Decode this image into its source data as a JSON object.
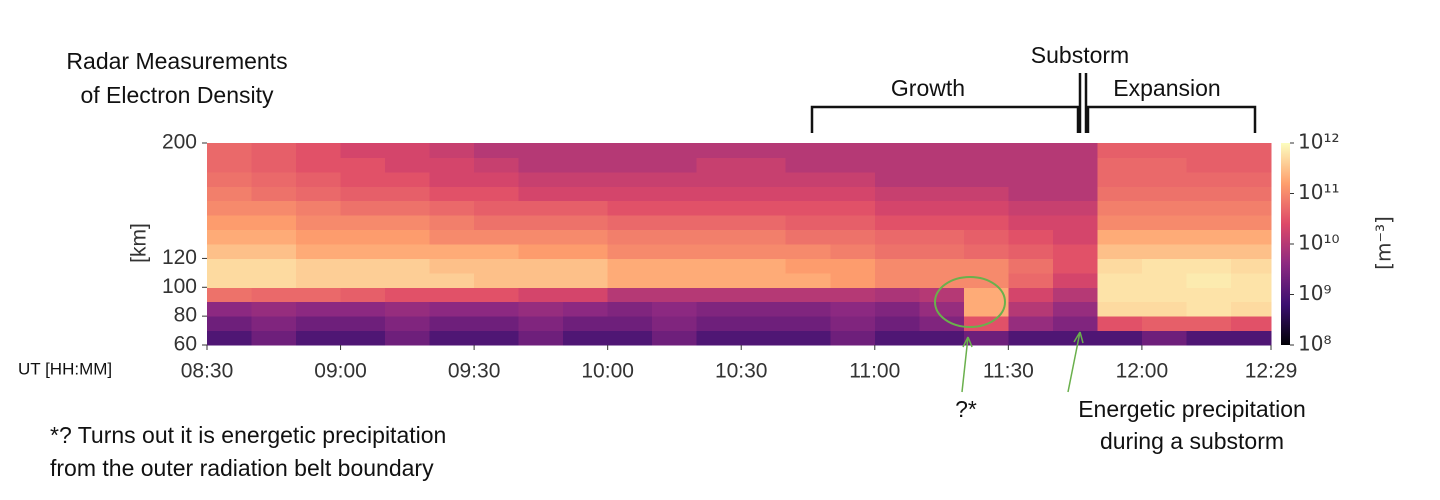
{
  "chart_data": {
    "type": "heatmap",
    "title": [
      "Radar Measurements",
      "of Electron Density"
    ],
    "x_label": "UT [HH:MM]",
    "y_label": "[km]",
    "x": [
      "08:30",
      "08:40",
      "08:50",
      "09:00",
      "09:10",
      "09:20",
      "09:30",
      "09:40",
      "09:50",
      "10:00",
      "10:10",
      "10:20",
      "10:30",
      "10:40",
      "10:50",
      "11:00",
      "11:10",
      "11:20",
      "11:30",
      "11:40",
      "11:50",
      "12:00",
      "12:10",
      "12:20",
      "12:29"
    ],
    "y": [
      60,
      70,
      80,
      90,
      100,
      110,
      120,
      130,
      140,
      150,
      160,
      170,
      180,
      190,
      200
    ],
    "z": [
      [
        1000000000.0,
        2000000000.0,
        1000000000.0,
        1000000000.0,
        2000000000.0,
        1000000000.0,
        1000000000.0,
        2000000000.0,
        1000000000.0,
        1000000000.0,
        2000000000.0,
        1000000000.0,
        1000000000.0,
        1000000000.0,
        2000000000.0,
        1000000000.0,
        1000000000.0,
        2000000000.0,
        1000000000.0,
        1000000000.0,
        1000000000.0,
        2000000000.0,
        1000000000.0,
        1000000000.0
      ],
      [
        2000000000.0,
        3000000000.0,
        2000000000.0,
        2000000000.0,
        3000000000.0,
        2000000000.0,
        2000000000.0,
        3000000000.0,
        2000000000.0,
        2000000000.0,
        3000000000.0,
        2000000000.0,
        2000000000.0,
        2000000000.0,
        3000000000.0,
        2000000000.0,
        3000000000.0,
        30000000000.0,
        5000000000.0,
        3000000000.0,
        30000000000.0,
        40000000000.0,
        40000000000.0,
        30000000000.0
      ],
      [
        4000000000.0,
        5000000000.0,
        4000000000.0,
        4000000000.0,
        5000000000.0,
        4000000000.0,
        4000000000.0,
        5000000000.0,
        4000000000.0,
        3000000000.0,
        4000000000.0,
        3000000000.0,
        3000000000.0,
        3000000000.0,
        4000000000.0,
        3000000000.0,
        5000000000.0,
        200000000000.0,
        10000000000.0,
        5000000000.0,
        500000000000.0,
        500000000000.0,
        600000000000.0,
        500000000000.0
      ],
      [
        60000000000.0,
        50000000000.0,
        50000000000.0,
        40000000000.0,
        30000000000.0,
        30000000000.0,
        30000000000.0,
        20000000000.0,
        20000000000.0,
        10000000000.0,
        10000000000.0,
        10000000000.0,
        10000000000.0,
        10000000000.0,
        10000000000.0,
        8000000000.0,
        10000000000.0,
        200000000000.0,
        20000000000.0,
        10000000000.0,
        600000000000.0,
        600000000000.0,
        600000000000.0,
        600000000000.0
      ],
      [
        500000000000.0,
        500000000000.0,
        400000000000.0,
        400000000000.0,
        400000000000.0,
        400000000000.0,
        300000000000.0,
        300000000000.0,
        300000000000.0,
        200000000000.0,
        200000000000.0,
        200000000000.0,
        200000000000.0,
        200000000000.0,
        150000000000.0,
        100000000000.0,
        100000000000.0,
        100000000000.0,
        50000000000.0,
        20000000000.0,
        600000000000.0,
        600000000000.0,
        700000000000.0,
        600000000000.0
      ],
      [
        500000000000.0,
        500000000000.0,
        400000000000.0,
        400000000000.0,
        400000000000.0,
        300000000000.0,
        300000000000.0,
        300000000000.0,
        300000000000.0,
        200000000000.0,
        200000000000.0,
        200000000000.0,
        200000000000.0,
        150000000000.0,
        150000000000.0,
        100000000000.0,
        100000000000.0,
        100000000000.0,
        60000000000.0,
        30000000000.0,
        500000000000.0,
        600000000000.0,
        600000000000.0,
        500000000000.0
      ],
      [
        300000000000.0,
        300000000000.0,
        200000000000.0,
        200000000000.0,
        200000000000.0,
        200000000000.0,
        200000000000.0,
        150000000000.0,
        150000000000.0,
        100000000000.0,
        100000000000.0,
        100000000000.0,
        100000000000.0,
        100000000000.0,
        80000000000.0,
        60000000000.0,
        60000000000.0,
        50000000000.0,
        40000000000.0,
        30000000000.0,
        300000000000.0,
        300000000000.0,
        300000000000.0,
        300000000000.0
      ],
      [
        200000000000.0,
        200000000000.0,
        150000000000.0,
        150000000000.0,
        150000000000.0,
        100000000000.0,
        100000000000.0,
        100000000000.0,
        100000000000.0,
        80000000000.0,
        80000000000.0,
        80000000000.0,
        80000000000.0,
        60000000000.0,
        60000000000.0,
        50000000000.0,
        50000000000.0,
        40000000000.0,
        30000000000.0,
        20000000000.0,
        200000000000.0,
        200000000000.0,
        200000000000.0,
        200000000000.0
      ],
      [
        150000000000.0,
        150000000000.0,
        100000000000.0,
        100000000000.0,
        100000000000.0,
        80000000000.0,
        60000000000.0,
        60000000000.0,
        60000000000.0,
        50000000000.0,
        50000000000.0,
        50000000000.0,
        50000000000.0,
        40000000000.0,
        40000000000.0,
        30000000000.0,
        30000000000.0,
        30000000000.0,
        20000000000.0,
        20000000000.0,
        100000000000.0,
        100000000000.0,
        100000000000.0,
        100000000000.0
      ],
      [
        100000000000.0,
        100000000000.0,
        80000000000.0,
        60000000000.0,
        60000000000.0,
        50000000000.0,
        40000000000.0,
        40000000000.0,
        40000000000.0,
        30000000000.0,
        30000000000.0,
        30000000000.0,
        30000000000.0,
        30000000000.0,
        30000000000.0,
        20000000000.0,
        20000000000.0,
        20000000000.0,
        15000000000.0,
        15000000000.0,
        80000000000.0,
        80000000000.0,
        80000000000.0,
        80000000000.0
      ],
      [
        80000000000.0,
        60000000000.0,
        50000000000.0,
        40000000000.0,
        40000000000.0,
        30000000000.0,
        30000000000.0,
        20000000000.0,
        20000000000.0,
        20000000000.0,
        20000000000.0,
        20000000000.0,
        20000000000.0,
        20000000000.0,
        20000000000.0,
        15000000000.0,
        15000000000.0,
        15000000000.0,
        10000000000.0,
        10000000000.0,
        60000000000.0,
        60000000000.0,
        60000000000.0,
        60000000000.0
      ],
      [
        60000000000.0,
        50000000000.0,
        40000000000.0,
        30000000000.0,
        30000000000.0,
        20000000000.0,
        20000000000.0,
        15000000000.0,
        15000000000.0,
        15000000000.0,
        15000000000.0,
        15000000000.0,
        15000000000.0,
        15000000000.0,
        15000000000.0,
        10000000000.0,
        10000000000.0,
        10000000000.0,
        10000000000.0,
        10000000000.0,
        50000000000.0,
        50000000000.0,
        50000000000.0,
        50000000000.0
      ],
      [
        50000000000.0,
        40000000000.0,
        30000000000.0,
        30000000000.0,
        20000000000.0,
        20000000000.0,
        15000000000.0,
        10000000000.0,
        10000000000.0,
        10000000000.0,
        10000000000.0,
        15000000000.0,
        15000000000.0,
        10000000000.0,
        10000000000.0,
        10000000000.0,
        10000000000.0,
        10000000000.0,
        10000000000.0,
        10000000000.0,
        50000000000.0,
        50000000000.0,
        40000000000.0,
        40000000000.0
      ],
      [
        50000000000.0,
        40000000000.0,
        30000000000.0,
        20000000000.0,
        20000000000.0,
        15000000000.0,
        10000000000.0,
        10000000000.0,
        10000000000.0,
        10000000000.0,
        10000000000.0,
        10000000000.0,
        10000000000.0,
        10000000000.0,
        10000000000.0,
        10000000000.0,
        10000000000.0,
        10000000000.0,
        10000000000.0,
        10000000000.0,
        40000000000.0,
        40000000000.0,
        40000000000.0,
        40000000000.0
      ]
    ],
    "xlim": [
      "08:30",
      "12:29"
    ],
    "xticks": [
      "08:30",
      "09:00",
      "09:30",
      "10:00",
      "10:30",
      "11:00",
      "11:30",
      "12:00",
      "12:29"
    ],
    "ylim": [
      60,
      200
    ],
    "yticks": [
      60,
      80,
      100,
      120,
      200
    ],
    "colorbar": {
      "label": "[m⁻³]",
      "scale": "log",
      "lim": [
        100000000.0,
        1000000000000.0
      ],
      "ticks": [
        {
          "value": 100000000.0,
          "label": "10⁸"
        },
        {
          "value": 1000000000.0,
          "label": "10⁹"
        },
        {
          "value": 10000000000.0,
          "label": "10¹⁰"
        },
        {
          "value": 100000000000.0,
          "label": "10¹¹"
        },
        {
          "value": 1000000000000.0,
          "label": "10¹²"
        }
      ],
      "colormap": [
        "#000004",
        "#3b0f70",
        "#8c2981",
        "#de4968",
        "#fe9f6d",
        "#fcfdbf"
      ]
    },
    "annotations": {
      "substorm": "Substorm",
      "growth": "Growth",
      "expansion": "Expansion",
      "blob_marker": "?*",
      "substorm_note": [
        "Energetic precipitation",
        "during a substorm"
      ],
      "footnote": [
        "*? Turns out it is energetic precipitation",
        "from the outer radiation belt boundary"
      ]
    }
  }
}
